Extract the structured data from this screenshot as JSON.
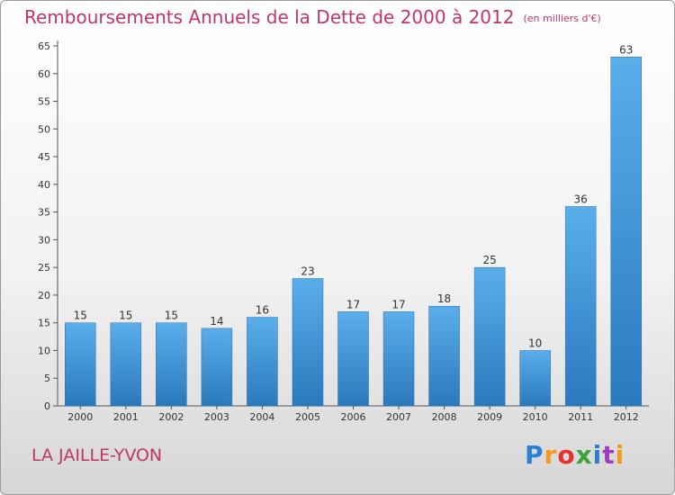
{
  "title": "Remboursements Annuels de la Dette de 2000 à 2012",
  "subtitle": "(en milliers d'€)",
  "commune": "LA JAILLE-YVON",
  "logo": {
    "letters": [
      "P",
      "r",
      "o",
      "x",
      "i",
      "t",
      "i"
    ],
    "colors": [
      "#2b7fd0",
      "#f39a1e",
      "#e8302c",
      "#3aa33a",
      "#2b7fd0",
      "#9b3fbf",
      "#f39a1e"
    ]
  },
  "colors": {
    "bar_light": "#5aaeea",
    "bar_dark": "#2b79bd",
    "text_accent": "#c0356a"
  },
  "chart_data": {
    "type": "bar",
    "title": "Remboursements Annuels de la Dette de 2000 à 2012",
    "categories": [
      "2000",
      "2001",
      "2002",
      "2003",
      "2004",
      "2005",
      "2006",
      "2007",
      "2008",
      "2009",
      "2010",
      "2011",
      "2012"
    ],
    "values": [
      15,
      15,
      15,
      14,
      16,
      23,
      17,
      17,
      18,
      25,
      10,
      36,
      63
    ],
    "ylim": [
      0,
      65
    ],
    "yticks": [
      0,
      5,
      10,
      15,
      20,
      25,
      30,
      35,
      40,
      45,
      50,
      55,
      60,
      65
    ],
    "grid": false,
    "data_labels": true
  }
}
